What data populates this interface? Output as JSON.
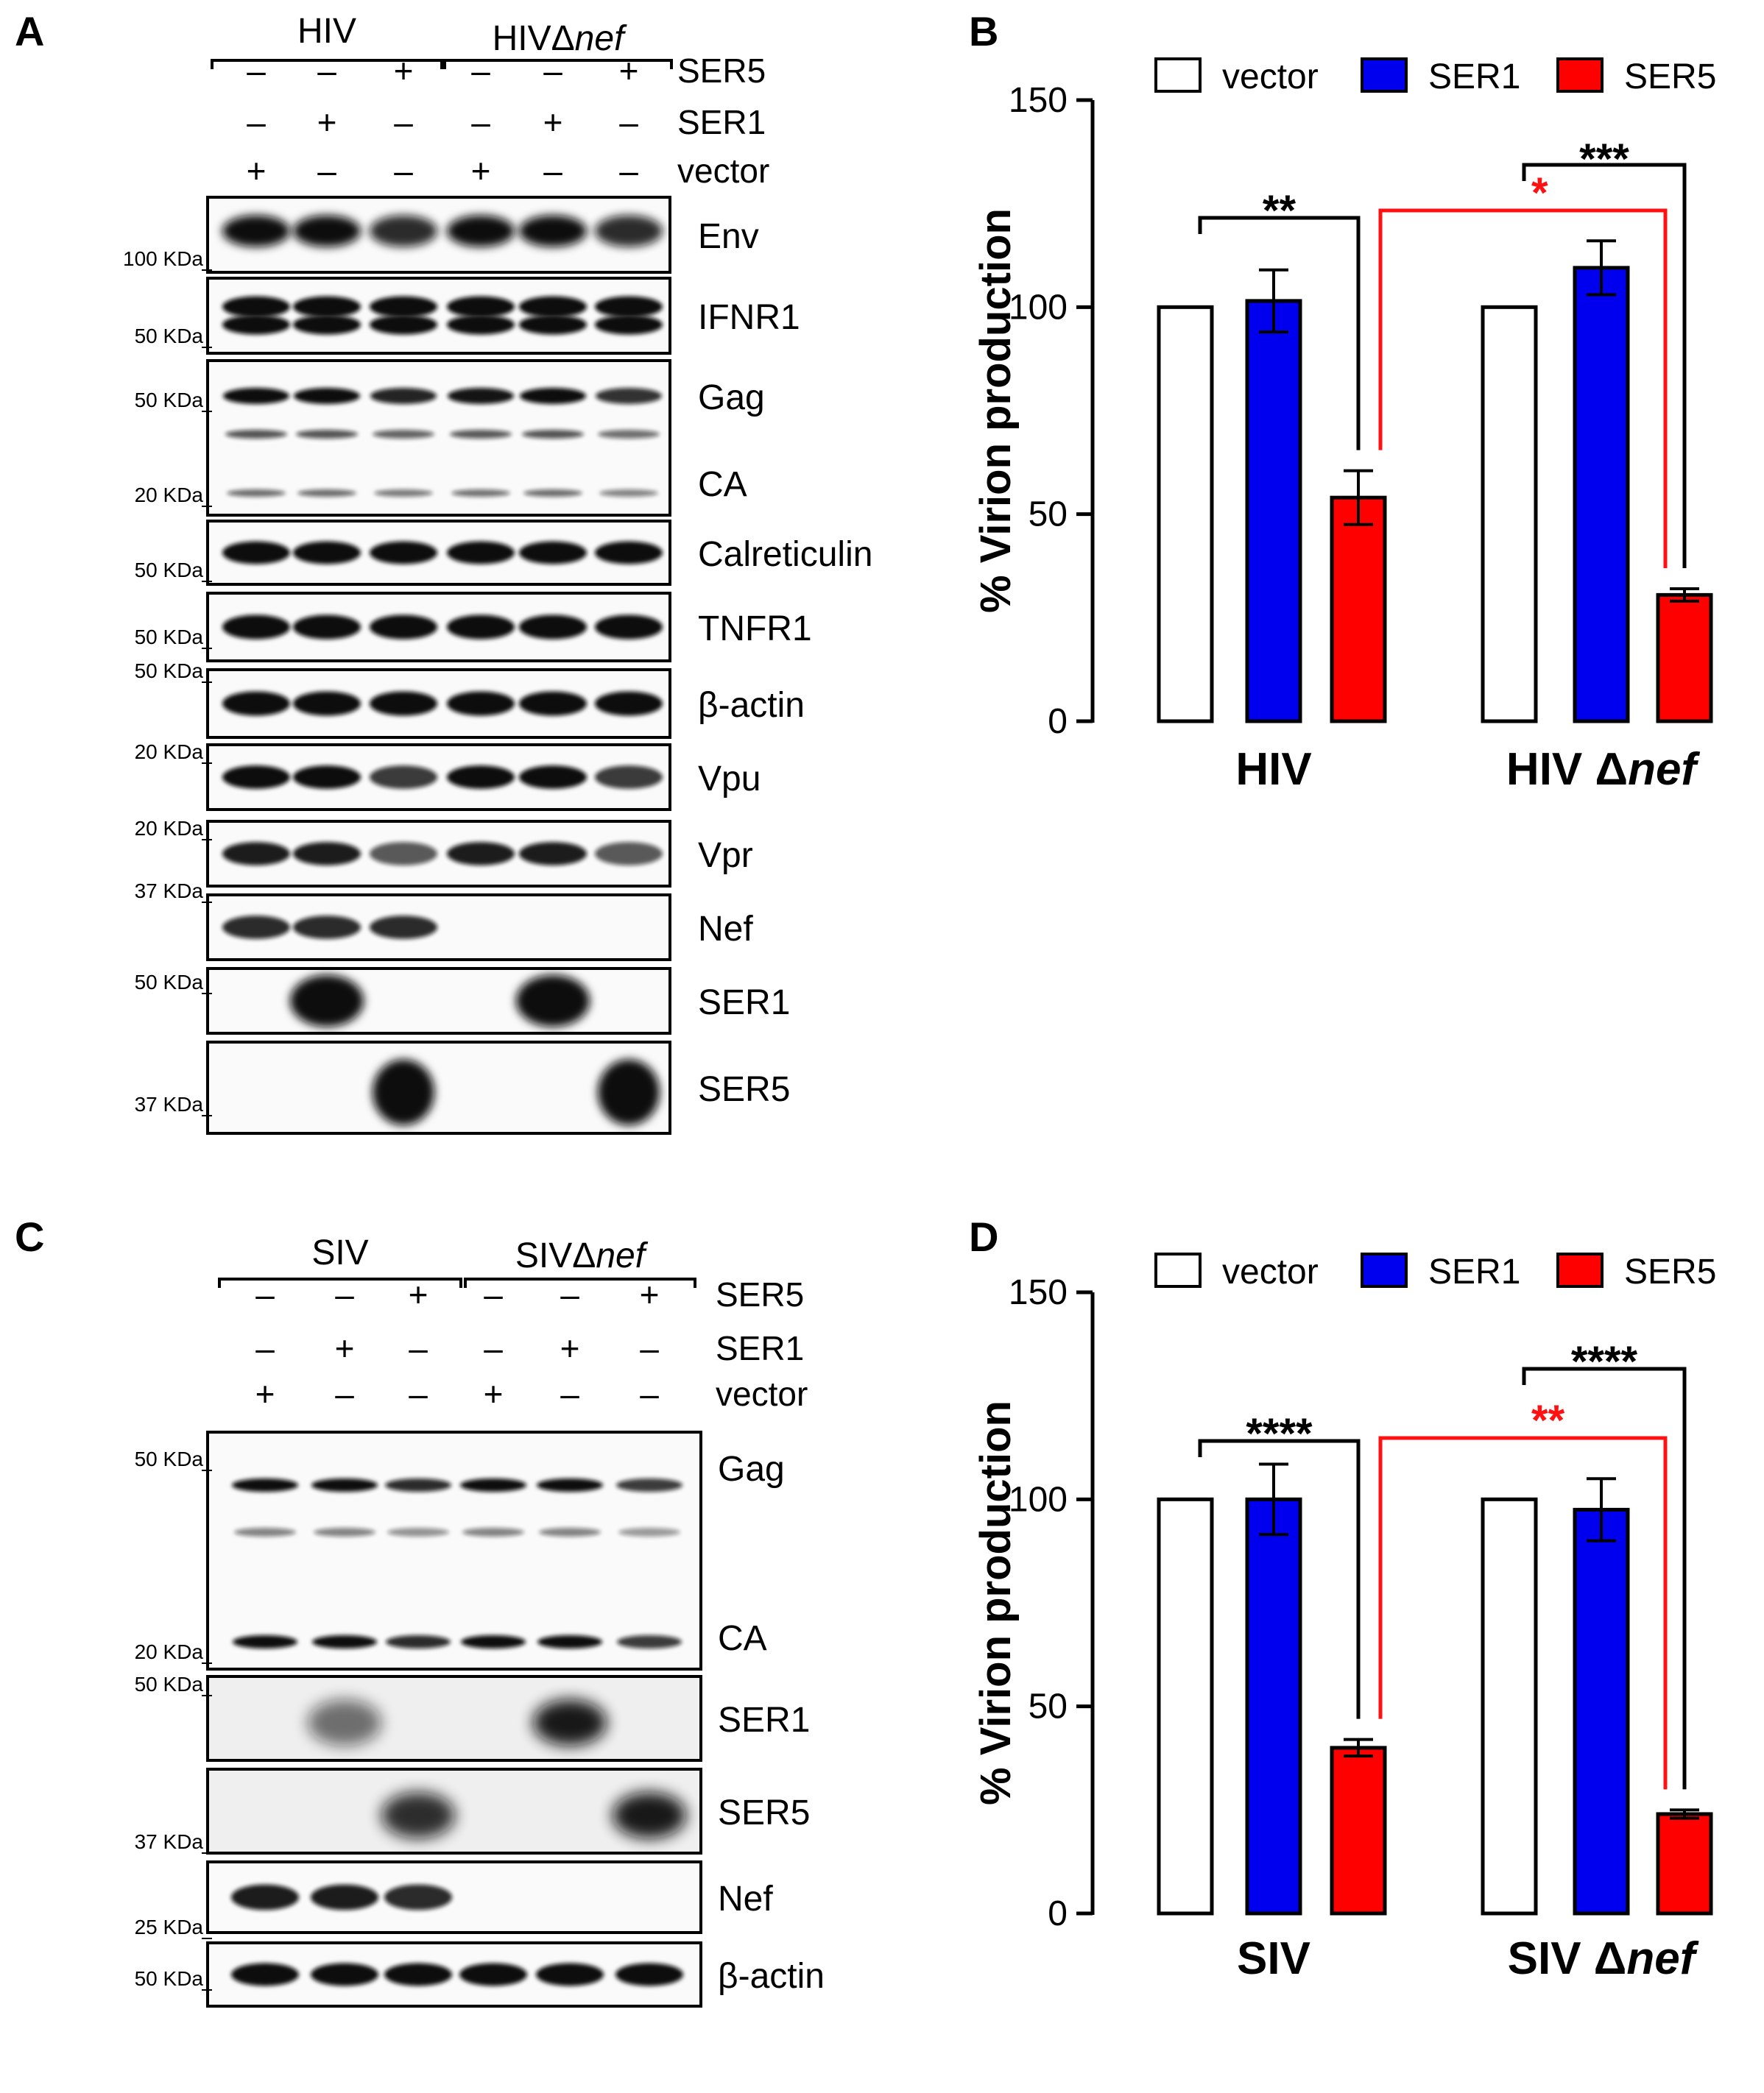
{
  "panels": {
    "A": {
      "letter": "A",
      "groups": [
        {
          "label": "HIV",
          "italic": ""
        },
        {
          "label": "HIVΔ",
          "italic": "nef"
        }
      ],
      "conditions": [
        {
          "label": "SER5",
          "marks": [
            "–",
            "–",
            "+",
            "–",
            "–",
            "+"
          ]
        },
        {
          "label": "SER1",
          "marks": [
            "–",
            "+",
            "–",
            "–",
            "+",
            "–"
          ]
        },
        {
          "label": "vector",
          "marks": [
            "+",
            "–",
            "–",
            "+",
            "–",
            "–"
          ]
        }
      ],
      "blots": [
        {
          "label": "Env",
          "label2": "",
          "kind": "env",
          "intensity": [
            1,
            1,
            0.8,
            1,
            1,
            0.8
          ]
        },
        {
          "label": "IFNR1",
          "label2": "",
          "kind": "double",
          "intensity": [
            1,
            1,
            1,
            1,
            1,
            1
          ]
        },
        {
          "label": "Gag",
          "label2": "CA",
          "kind": "gag",
          "intensity": [
            1,
            1,
            0.85,
            0.95,
            1,
            0.75
          ]
        },
        {
          "label": "Calreticulin",
          "label2": "",
          "kind": "single",
          "intensity": [
            1,
            1,
            1,
            1,
            1,
            1
          ]
        },
        {
          "label": "TNFR1",
          "label2": "",
          "kind": "single",
          "intensity": [
            1,
            1,
            1,
            1,
            1,
            1
          ]
        },
        {
          "label": "β-actin",
          "label2": "",
          "kind": "single",
          "intensity": [
            1,
            1,
            1,
            1,
            1,
            1
          ]
        },
        {
          "label": "Vpu",
          "label2": "",
          "kind": "single",
          "intensity": [
            1,
            1,
            0.7,
            1,
            1,
            0.7
          ]
        },
        {
          "label": "Vpr",
          "label2": "",
          "kind": "single",
          "intensity": [
            0.9,
            0.9,
            0.5,
            0.9,
            0.9,
            0.5
          ]
        },
        {
          "label": "Nef",
          "label2": "",
          "kind": "single",
          "intensity": [
            0.8,
            0.8,
            0.8,
            0,
            0,
            0
          ]
        },
        {
          "label": "SER1",
          "label2": "",
          "kind": "blob",
          "intensity": [
            0,
            1,
            0,
            0,
            1,
            0
          ]
        },
        {
          "label": "SER5",
          "label2": "",
          "kind": "blob5",
          "intensity": [
            0,
            0,
            1,
            0,
            0,
            1
          ]
        }
      ],
      "markers": [
        "100 KDa",
        "50 KDa",
        "50 KDa",
        "20 KDa",
        "50 KDa",
        "50 KDa",
        "50 KDa",
        "20 KDa",
        "20 KDa",
        "37 KDa",
        "50 KDa",
        "37 KDa"
      ]
    },
    "C": {
      "letter": "C",
      "groups": [
        {
          "label": "SIV",
          "italic": ""
        },
        {
          "label": "SIVΔ",
          "italic": "nef"
        }
      ],
      "conditions": [
        {
          "label": "SER5",
          "marks": [
            "–",
            "–",
            "+",
            "–",
            "–",
            "+"
          ]
        },
        {
          "label": "SER1",
          "marks": [
            "–",
            "+",
            "–",
            "–",
            "+",
            "–"
          ]
        },
        {
          "label": "vector",
          "marks": [
            "+",
            "–",
            "–",
            "+",
            "–",
            "–"
          ]
        }
      ],
      "blots": [
        {
          "label": "Gag",
          "label2": "CA",
          "kind": "gagsiv",
          "intensity": [
            1,
            1,
            0.8,
            1,
            1,
            0.7
          ]
        },
        {
          "label": "SER1",
          "label2": "",
          "kind": "smear1",
          "intensity": [
            0,
            0.6,
            0,
            0,
            1,
            0
          ]
        },
        {
          "label": "SER5",
          "label2": "",
          "kind": "smear5",
          "intensity": [
            0,
            0,
            0.9,
            0,
            0,
            1
          ]
        },
        {
          "label": "Nef",
          "label2": "",
          "kind": "single",
          "intensity": [
            0.9,
            0.9,
            0.8,
            0,
            0,
            0
          ]
        },
        {
          "label": "β-actin",
          "label2": "",
          "kind": "single",
          "intensity": [
            1,
            1,
            1,
            1,
            1,
            1
          ]
        }
      ],
      "markers": [
        "50 KDa",
        "20 KDa",
        "50 KDa",
        "37 KDa",
        "25 KDa",
        "50 KDa"
      ]
    }
  },
  "chart_data": [
    {
      "panel": "B",
      "type": "bar",
      "ylabel": "% Virion production",
      "ylim": [
        0,
        150
      ],
      "yticks": [
        0,
        50,
        100,
        150
      ],
      "categories": [
        {
          "main": "HIV",
          "suffix": ""
        },
        {
          "main": "HIV Δ",
          "suffix": "nef"
        }
      ],
      "series": [
        {
          "name": "vector",
          "color": "#ffffff",
          "values": [
            100,
            100
          ],
          "errors": [
            0,
            0
          ]
        },
        {
          "name": "SER1",
          "color": "#0000ee",
          "values": [
            101.5,
            109.5
          ],
          "errors": [
            7.5,
            6.5
          ]
        },
        {
          "name": "SER5",
          "color": "#ff0000",
          "values": [
            54,
            30.5
          ],
          "errors": [
            6.5,
            1.5
          ]
        }
      ],
      "legend_position": "top",
      "significance": [
        {
          "text": "**",
          "color": "#000000",
          "type": "within",
          "group": 0
        },
        {
          "text": "***",
          "color": "#000000",
          "type": "within",
          "group": 1
        },
        {
          "text": "*",
          "color": "#ff1111",
          "type": "between"
        }
      ]
    },
    {
      "panel": "D",
      "type": "bar",
      "ylabel": "% Virion production",
      "ylim": [
        0,
        150
      ],
      "yticks": [
        0,
        50,
        100,
        150
      ],
      "categories": [
        {
          "main": "SIV",
          "suffix": ""
        },
        {
          "main": "SIV Δ",
          "suffix": "nef"
        }
      ],
      "series": [
        {
          "name": "vector",
          "color": "#ffffff",
          "values": [
            100,
            100
          ],
          "errors": [
            0,
            0
          ]
        },
        {
          "name": "SER1",
          "color": "#0000ee",
          "values": [
            100,
            97.5
          ],
          "errors": [
            8.5,
            7.5
          ]
        },
        {
          "name": "SER5",
          "color": "#ff0000",
          "values": [
            40,
            24
          ],
          "errors": [
            2,
            1
          ]
        }
      ],
      "legend_position": "top",
      "significance": [
        {
          "text": "****",
          "color": "#000000",
          "type": "within",
          "group": 0
        },
        {
          "text": "****",
          "color": "#000000",
          "type": "within",
          "group": 1
        },
        {
          "text": "**",
          "color": "#ff1111",
          "type": "between"
        }
      ]
    }
  ],
  "chart_letters": [
    "B",
    "D"
  ]
}
